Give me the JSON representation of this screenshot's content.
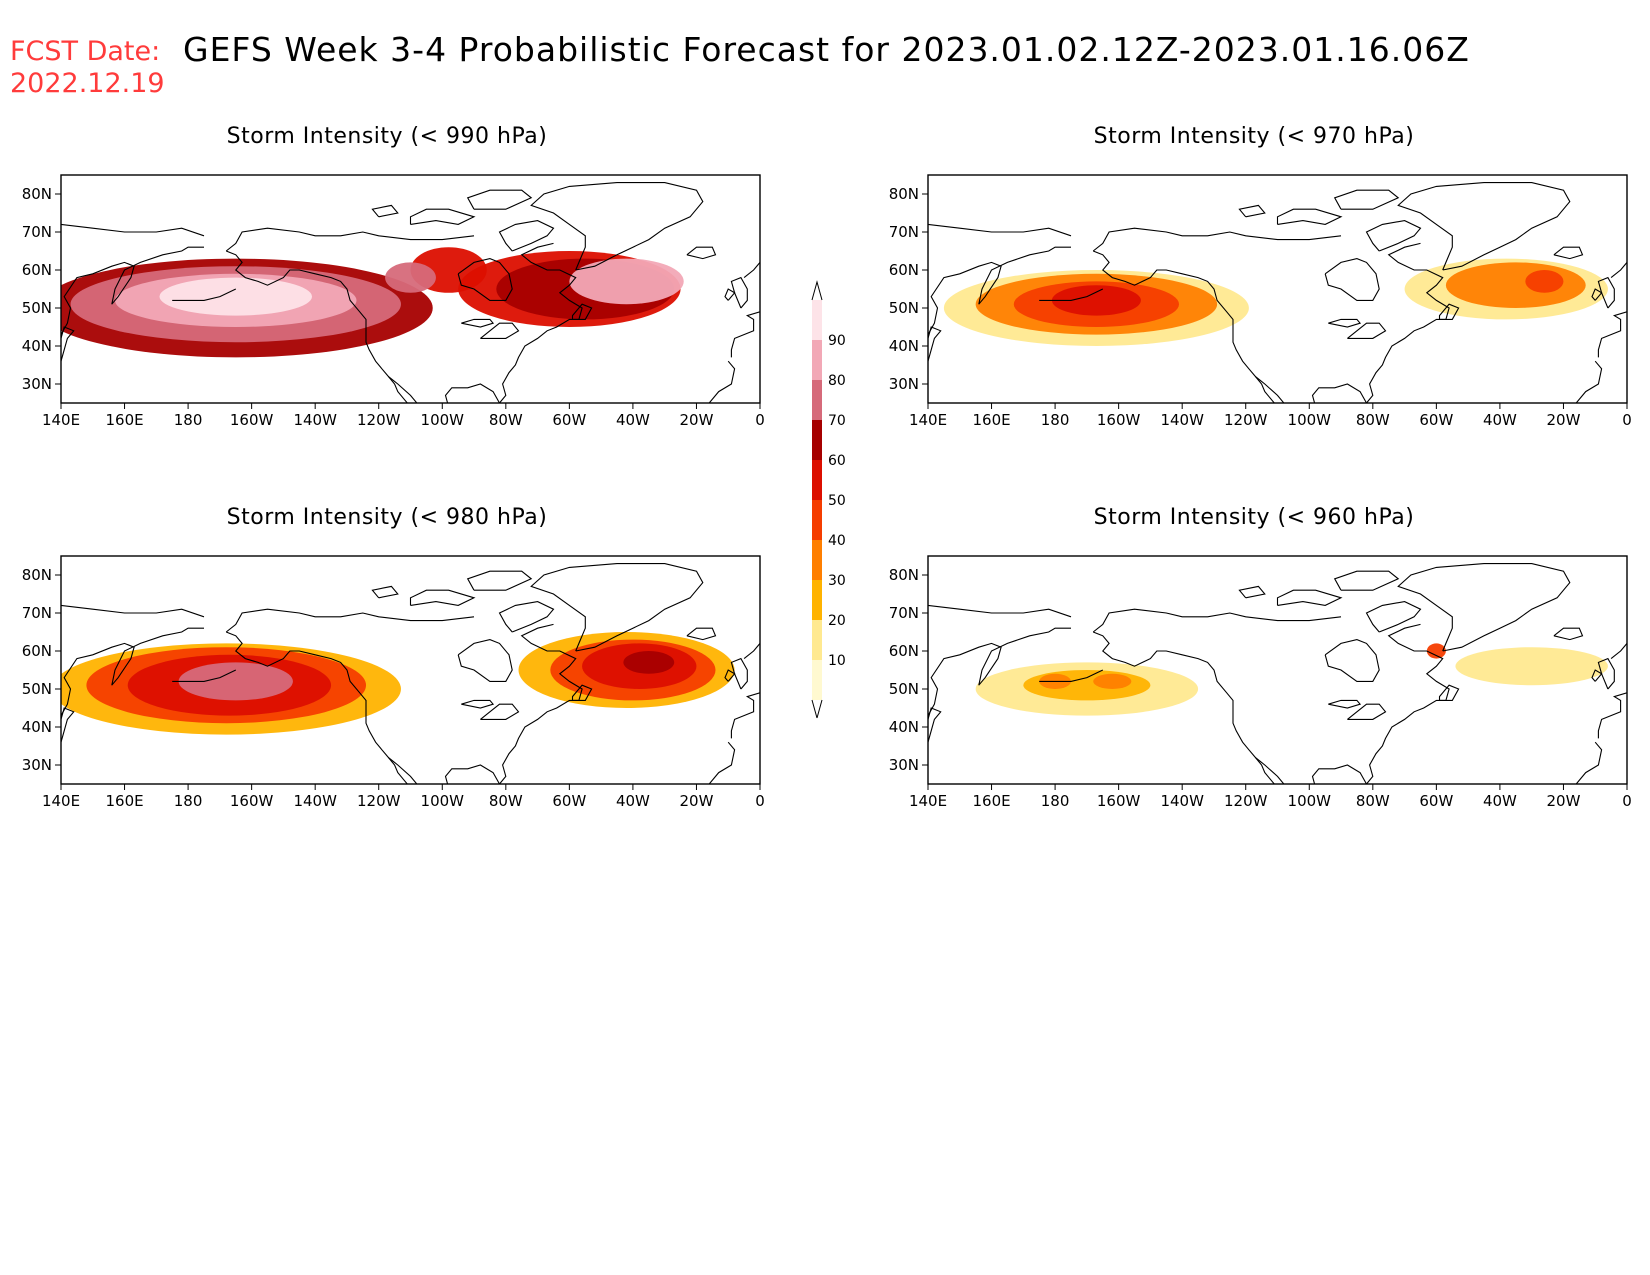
{
  "header": {
    "fcst_label": "FCST Date:",
    "fcst_date": "2022.12.19",
    "title": "GEFS Week 3-4 Probabilistic Forecast for 2023.01.02.12Z-2023.01.16.06Z"
  },
  "axes": {
    "lon_ticks": [
      "140E",
      "160E",
      "180",
      "160W",
      "140W",
      "120W",
      "100W",
      "80W",
      "60W",
      "40W",
      "20W",
      "0"
    ],
    "lat_ticks": [
      "80N",
      "70N",
      "60N",
      "50N",
      "40N",
      "30N"
    ]
  },
  "colorbar": {
    "levels": [
      "10",
      "20",
      "30",
      "40",
      "50",
      "60",
      "70",
      "80",
      "90"
    ],
    "colors": [
      "#fff9d0",
      "#ffe990",
      "#ffb300",
      "#ff7f00",
      "#f53d00",
      "#dc0f00",
      "#a60000",
      "#d66a7a",
      "#f2a8b6",
      "#fde3e8"
    ]
  },
  "panels": [
    {
      "id": "p990",
      "title": "Storm Intensity (< 990 hPa)",
      "blobs": [
        {
          "lon": 195,
          "lat": 50,
          "rx": 62,
          "ry": 13,
          "level": 6
        },
        {
          "lon": 195,
          "lat": 51,
          "rx": 52,
          "ry": 10,
          "level": 7
        },
        {
          "lon": 195,
          "lat": 52,
          "rx": 38,
          "ry": 7,
          "level": 8
        },
        {
          "lon": 195,
          "lat": 53,
          "rx": 24,
          "ry": 5,
          "level": 9
        },
        {
          "lon": 300,
          "lat": 55,
          "rx": 35,
          "ry": 10,
          "level": 5
        },
        {
          "lon": 305,
          "lat": 55,
          "rx": 28,
          "ry": 8,
          "level": 6
        },
        {
          "lon": 318,
          "lat": 57,
          "rx": 18,
          "ry": 6,
          "level": 8
        },
        {
          "lon": 262,
          "lat": 60,
          "rx": 12,
          "ry": 6,
          "level": 5
        },
        {
          "lon": 250,
          "lat": 58,
          "rx": 8,
          "ry": 4,
          "level": 7
        }
      ]
    },
    {
      "id": "p970",
      "title": "Storm Intensity (< 970 hPa)",
      "blobs": [
        {
          "lon": 193,
          "lat": 50,
          "rx": 48,
          "ry": 10,
          "level": 1
        },
        {
          "lon": 193,
          "lat": 51,
          "rx": 38,
          "ry": 8,
          "level": 3
        },
        {
          "lon": 193,
          "lat": 51,
          "rx": 26,
          "ry": 6,
          "level": 4
        },
        {
          "lon": 193,
          "lat": 52,
          "rx": 14,
          "ry": 4,
          "level": 5
        },
        {
          "lon": 322,
          "lat": 55,
          "rx": 32,
          "ry": 8,
          "level": 1
        },
        {
          "lon": 325,
          "lat": 56,
          "rx": 22,
          "ry": 6,
          "level": 3
        },
        {
          "lon": 334,
          "lat": 57,
          "rx": 6,
          "ry": 3,
          "level": 4
        }
      ]
    },
    {
      "id": "p980",
      "title": "Storm Intensity (< 980 hPa)",
      "blobs": [
        {
          "lon": 192,
          "lat": 50,
          "rx": 55,
          "ry": 12,
          "level": 2
        },
        {
          "lon": 192,
          "lat": 51,
          "rx": 44,
          "ry": 10,
          "level": 4
        },
        {
          "lon": 193,
          "lat": 51,
          "rx": 32,
          "ry": 8,
          "level": 5
        },
        {
          "lon": 195,
          "lat": 52,
          "rx": 18,
          "ry": 5,
          "level": 7
        },
        {
          "lon": 318,
          "lat": 55,
          "rx": 34,
          "ry": 10,
          "level": 2
        },
        {
          "lon": 320,
          "lat": 55,
          "rx": 26,
          "ry": 8,
          "level": 4
        },
        {
          "lon": 322,
          "lat": 56,
          "rx": 18,
          "ry": 6,
          "level": 5
        },
        {
          "lon": 325,
          "lat": 57,
          "rx": 8,
          "ry": 3,
          "level": 6
        }
      ]
    },
    {
      "id": "p960",
      "title": "Storm Intensity (< 960 hPa)",
      "blobs": [
        {
          "lon": 190,
          "lat": 50,
          "rx": 35,
          "ry": 7,
          "level": 1
        },
        {
          "lon": 190,
          "lat": 51,
          "rx": 20,
          "ry": 4,
          "level": 2
        },
        {
          "lon": 180,
          "lat": 52,
          "rx": 5,
          "ry": 2,
          "level": 3
        },
        {
          "lon": 198,
          "lat": 52,
          "rx": 6,
          "ry": 2,
          "level": 3
        },
        {
          "lon": 330,
          "lat": 56,
          "rx": 24,
          "ry": 5,
          "level": 1
        },
        {
          "lon": 300,
          "lat": 60,
          "rx": 3,
          "ry": 2,
          "level": 4
        }
      ]
    }
  ]
}
